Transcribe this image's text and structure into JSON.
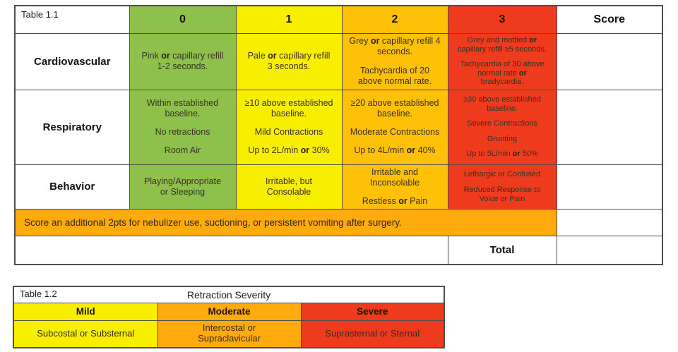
{
  "colors": {
    "green": "#8DC14C",
    "yellow": "#F7EE00",
    "gold": "#FFC008",
    "red": "#EE3B1D",
    "orange": "#FFAB0D",
    "border": "#4e4e4e"
  },
  "table1": {
    "label": "Table 1.1",
    "score_header": "Score",
    "column_headers": [
      "0",
      "1",
      "2",
      "3"
    ],
    "rows": [
      {
        "label": "Cardiovascular",
        "cells": [
          "Pink **or** capillary refill\n1-2 seconds.",
          "Pale **or** capillary refill\n3 seconds.",
          "Grey **or** capillary refill 4\nseconds.\n\nTachycardia of 20\nabove normal rate.",
          "Grey and mottled **or**\ncapillary refill ≥5 seconds.\n\nTachycardia of 30 above\nnormal rate **or**\nbradycardia."
        ]
      },
      {
        "label": "Respiratory",
        "cells": [
          "Within established\nbaseline.\n\nNo retractions\n\nRoom Air",
          "≥10 above established\nbaseline.\n\nMild Contractions\n\nUp to 2L/min **or** 30%",
          "≥20 above established\nbaseline.\n\nModerate Contractions\n\nUp to 4L/min **or** 40%",
          "≥30 above established\nbaseline.\n\nSevere Contractions\n\nGrunting\n\nUp to 5L/min **or** 50%"
        ]
      },
      {
        "label": "Behavior",
        "cells": [
          "Playing/Appropriate\nor Sleeping",
          "Irritable, but\nConsolable",
          "Irritable and\nInconsolable\n\nRestless **or** Pain",
          "Lethargic or Confused\n\nReduced Response to\nVoice or Pain"
        ]
      }
    ],
    "note": "Score an additional 2pts for nebulizer use, suctioning, or persistent vomiting after surgery.",
    "total_label": "Total"
  },
  "table2": {
    "label": "Table 1.2",
    "title": "Retraction Severity",
    "columns": [
      {
        "header": "Mild",
        "body": "Subcostal or Substernal"
      },
      {
        "header": "Moderate",
        "body": "Intercostal or\nSupraclavicular"
      },
      {
        "header": "Severe",
        "body": "Suprasternal or Sternal"
      }
    ]
  }
}
